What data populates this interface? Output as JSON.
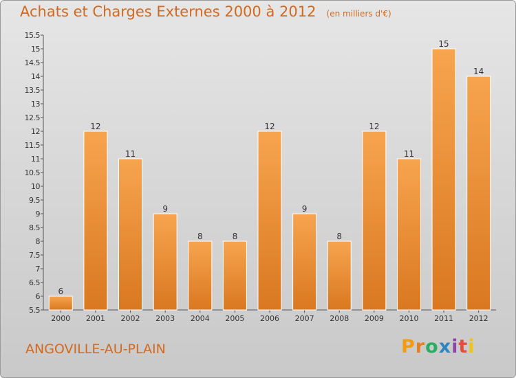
{
  "header": {
    "title": "Achats et Charges Externes 2000 à 2012",
    "unit": "(en milliers d'€)"
  },
  "footer": {
    "commune": "ANGOVILLE-AU-PLAIN",
    "brand": "Proxiti"
  },
  "colors": {
    "bar_light": "#f7a44f",
    "bar_dark": "#d97820",
    "title": "#d2691e",
    "brand_letters": [
      "#f39c12",
      "#e67e22",
      "#27ae60",
      "#2e86c1",
      "#8e44ad",
      "#e74c3c",
      "#f1c40f"
    ]
  },
  "chart_data": {
    "type": "bar",
    "title": "Achats et Charges Externes 2000 à 2012",
    "categories": [
      "2000",
      "2001",
      "2002",
      "2003",
      "2004",
      "2005",
      "2006",
      "2007",
      "2008",
      "2009",
      "2010",
      "2011",
      "2012"
    ],
    "values": [
      6,
      12,
      11,
      9,
      8,
      8,
      12,
      9,
      8,
      12,
      11,
      15,
      14
    ],
    "ylim": [
      5.5,
      15.5
    ],
    "yticks": [
      "5.5",
      "6",
      "6.5",
      "7",
      "7.5",
      "8",
      "8.5",
      "9",
      "9.5",
      "10",
      "10.5",
      "11",
      "11.5",
      "12",
      "12.5",
      "13",
      "13.5",
      "14",
      "14.5",
      "15",
      "15.5"
    ],
    "grid": false,
    "legend": "none"
  }
}
